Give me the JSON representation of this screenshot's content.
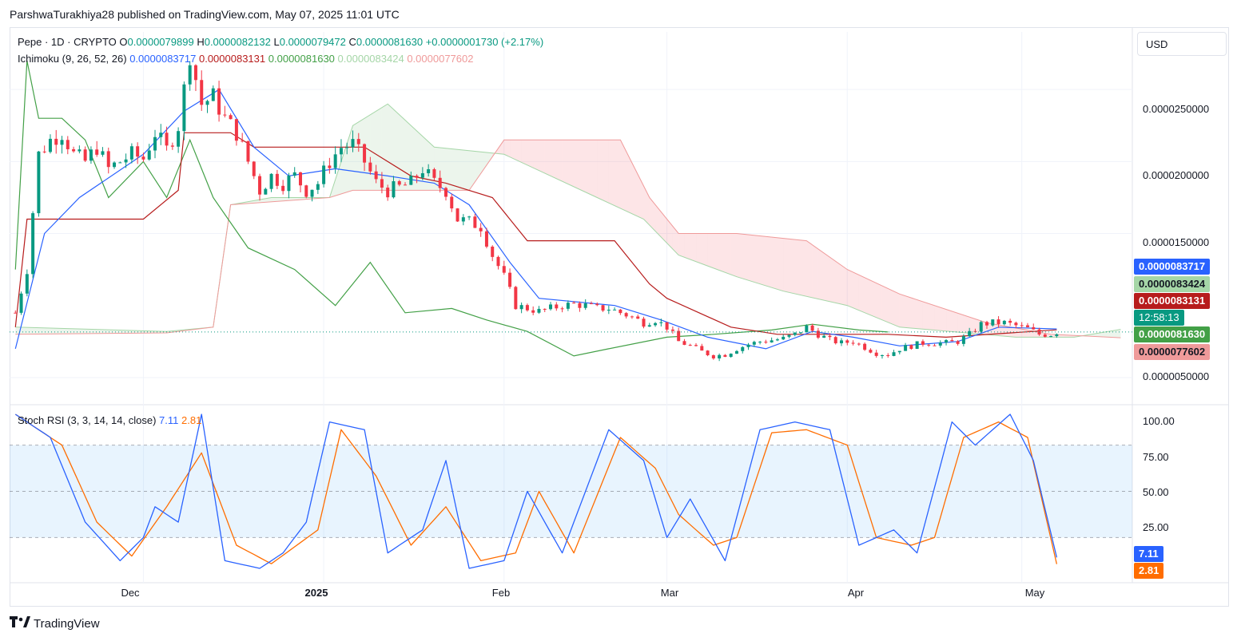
{
  "header": {
    "published_by": "ParshwaTurakhiya28 published on TradingView.com, May 07, 2025 11:01 UTC"
  },
  "legend": {
    "symbol": "Pepe · 1D · CRYPTO",
    "o_label": "O",
    "o": "0.0000079899",
    "h_label": "H",
    "h": "0.0000082132",
    "l_label": "L",
    "l": "0.0000079472",
    "c_label": "C",
    "c": "0.0000081630",
    "change": "+0.0000001730 (+2.17%)",
    "ichimoku_label": "Ichimoku (9, 26, 52, 26)",
    "ichi_conversion": "0.0000083717",
    "ichi_base": "0.0000083131",
    "ichi_lagging": "0.0000081630",
    "ichi_span_a": "0.0000083424",
    "ichi_span_b": "0.0000077602",
    "stoch_label": "Stoch RSI (3, 3, 14, 14, close)",
    "stoch_k": "7.11",
    "stoch_d": "2.81"
  },
  "currency": "USD",
  "price_axis": [
    "0.0000250000",
    "0.0000200000",
    "0.0000150000",
    "0.0000050000"
  ],
  "rsi_axis": [
    "100.00",
    "75.00",
    "50.00",
    "25.00"
  ],
  "badges": {
    "conversion": "0.0000083717",
    "span_a": "0.0000083424",
    "base": "0.0000083131",
    "countdown": "12:58:13",
    "last_price": "0.0000081630",
    "span_b": "0.0000077602",
    "k": "7.11",
    "d": "2.81"
  },
  "x_axis": [
    "Dec",
    "2025",
    "Feb",
    "Mar",
    "Apr",
    "May"
  ],
  "brand": "TradingView",
  "colors": {
    "up": "#089981",
    "down": "#f23645",
    "conversion": "#2962ff",
    "base": "#b71c1c",
    "lagging": "#43a047",
    "span_a": "#a5d6a7",
    "span_b": "#ef9a9a",
    "k": "#2962ff",
    "d": "#ff6d00"
  },
  "chart_data": [
    {
      "type": "candlestick",
      "title": "Pepe · 1D · CRYPTO",
      "ylim": [
        3.5e-06,
        2.9e-05
      ],
      "x_range": [
        "2024-11-08",
        "2025-05-20"
      ],
      "price_path": [
        [
          "2024-11-09",
          9.5e-06
        ],
        [
          "2024-11-11",
          1.25e-05
        ],
        [
          "2024-11-13",
          2.05e-05
        ],
        [
          "2024-11-15",
          2.15e-05
        ],
        [
          "2024-11-17",
          2.2e-05
        ],
        [
          "2024-11-19",
          2.05e-05
        ],
        [
          "2024-11-21",
          2e-05
        ],
        [
          "2024-11-23",
          2.1e-05
        ],
        [
          "2024-11-25",
          1.95e-05
        ],
        [
          "2024-11-27",
          2e-05
        ],
        [
          "2024-11-29",
          2.05e-05
        ],
        [
          "2024-12-01",
          2.02e-05
        ],
        [
          "2024-12-03",
          2.2e-05
        ],
        [
          "2024-12-05",
          2.08e-05
        ],
        [
          "2024-12-07",
          2.25e-05
        ],
        [
          "2024-12-09",
          2.75e-05
        ],
        [
          "2024-12-11",
          2.4e-05
        ],
        [
          "2024-12-13",
          2.45e-05
        ],
        [
          "2024-12-15",
          2.3e-05
        ],
        [
          "2024-12-17",
          2.2e-05
        ],
        [
          "2024-12-19",
          2e-05
        ],
        [
          "2024-12-21",
          1.8e-05
        ],
        [
          "2024-12-23",
          1.9e-05
        ],
        [
          "2024-12-25",
          1.85e-05
        ],
        [
          "2024-12-27",
          1.9e-05
        ],
        [
          "2024-12-29",
          1.8e-05
        ],
        [
          "2024-12-31",
          1.85e-05
        ],
        [
          "2025-01-02",
          2e-05
        ],
        [
          "2025-01-04",
          2.1e-05
        ],
        [
          "2025-01-06",
          2.12e-05
        ],
        [
          "2025-01-08",
          2e-05
        ],
        [
          "2025-01-10",
          1.85e-05
        ],
        [
          "2025-01-12",
          1.8e-05
        ],
        [
          "2025-01-14",
          1.82e-05
        ],
        [
          "2025-01-16",
          1.85e-05
        ],
        [
          "2025-01-18",
          1.95e-05
        ],
        [
          "2025-01-20",
          1.85e-05
        ],
        [
          "2025-01-22",
          1.8e-05
        ],
        [
          "2025-01-24",
          1.6e-05
        ],
        [
          "2025-01-26",
          1.58e-05
        ],
        [
          "2025-01-28",
          1.55e-05
        ],
        [
          "2025-01-30",
          1.35e-05
        ],
        [
          "2025-02-01",
          1.2e-05
        ],
        [
          "2025-02-03",
          1e-05
        ],
        [
          "2025-02-05",
          9.8e-06
        ],
        [
          "2025-02-07",
          9.6e-06
        ],
        [
          "2025-02-09",
          9.8e-06
        ],
        [
          "2025-02-11",
          1e-05
        ],
        [
          "2025-02-13",
          1.01e-05
        ],
        [
          "2025-02-15",
          1e-05
        ],
        [
          "2025-02-17",
          9.8e-06
        ],
        [
          "2025-02-19",
          9.8e-06
        ],
        [
          "2025-02-21",
          9.5e-06
        ],
        [
          "2025-02-23",
          9.2e-06
        ],
        [
          "2025-02-25",
          8.8e-06
        ],
        [
          "2025-02-27",
          9e-06
        ],
        [
          "2025-03-01",
          8.5e-06
        ],
        [
          "2025-03-03",
          7.5e-06
        ],
        [
          "2025-03-05",
          7.2e-06
        ],
        [
          "2025-03-07",
          6.8e-06
        ],
        [
          "2025-03-09",
          6.5e-06
        ],
        [
          "2025-03-11",
          6.6e-06
        ],
        [
          "2025-03-13",
          7e-06
        ],
        [
          "2025-03-15",
          7.3e-06
        ],
        [
          "2025-03-17",
          7.5e-06
        ],
        [
          "2025-03-19",
          7.6e-06
        ],
        [
          "2025-03-21",
          7.7e-06
        ],
        [
          "2025-03-23",
          8e-06
        ],
        [
          "2025-03-25",
          8.5e-06
        ],
        [
          "2025-03-27",
          8e-06
        ],
        [
          "2025-03-29",
          7.6e-06
        ],
        [
          "2025-03-31",
          7.4e-06
        ],
        [
          "2025-04-02",
          7.5e-06
        ],
        [
          "2025-04-04",
          7.1e-06
        ],
        [
          "2025-04-06",
          6.7e-06
        ],
        [
          "2025-04-08",
          6.6e-06
        ],
        [
          "2025-04-10",
          7e-06
        ],
        [
          "2025-04-12",
          7.2e-06
        ],
        [
          "2025-04-14",
          7.4e-06
        ],
        [
          "2025-04-16",
          7.4e-06
        ],
        [
          "2025-04-18",
          7.4e-06
        ],
        [
          "2025-04-20",
          7.5e-06
        ],
        [
          "2025-04-22",
          8e-06
        ],
        [
          "2025-04-24",
          8.7e-06
        ],
        [
          "2025-04-26",
          8.8e-06
        ],
        [
          "2025-04-28",
          8.8e-06
        ],
        [
          "2025-04-30",
          8.6e-06
        ],
        [
          "2025-05-02",
          8.4e-06
        ],
        [
          "2025-05-04",
          8e-06
        ],
        [
          "2025-05-06",
          8e-06
        ],
        [
          "2025-05-07",
          8.163e-06
        ]
      ],
      "tenkan_path": [
        [
          "2024-11-09",
          7e-06
        ],
        [
          "2024-11-14",
          1.5e-05
        ],
        [
          "2024-11-20",
          1.75e-05
        ],
        [
          "2024-12-01",
          2.05e-05
        ],
        [
          "2024-12-08",
          2.35e-05
        ],
        [
          "2024-12-14",
          2.5e-05
        ],
        [
          "2024-12-20",
          2.1e-05
        ],
        [
          "2024-12-26",
          1.9e-05
        ],
        [
          "2025-01-03",
          1.95e-05
        ],
        [
          "2025-01-12",
          1.9e-05
        ],
        [
          "2025-01-20",
          1.85e-05
        ],
        [
          "2025-01-26",
          1.7e-05
        ],
        [
          "2025-02-02",
          1.3e-05
        ],
        [
          "2025-02-07",
          1.05e-05
        ],
        [
          "2025-02-20",
          1e-05
        ],
        [
          "2025-02-28",
          9e-06
        ],
        [
          "2025-03-08",
          7.8e-06
        ],
        [
          "2025-03-18",
          7e-06
        ],
        [
          "2025-03-26",
          8.2e-06
        ],
        [
          "2025-04-02",
          7.8e-06
        ],
        [
          "2025-04-10",
          7.2e-06
        ],
        [
          "2025-04-20",
          7.5e-06
        ],
        [
          "2025-04-27",
          8.5e-06
        ],
        [
          "2025-05-07",
          8.3717e-06
        ]
      ],
      "kijun_path": [
        [
          "2024-11-09",
          8.5e-06
        ],
        [
          "2024-11-11",
          1.6e-05
        ],
        [
          "2024-12-01",
          1.6e-05
        ],
        [
          "2024-12-07",
          1.8e-05
        ],
        [
          "2024-12-08",
          2.2e-05
        ],
        [
          "2024-12-16",
          2.2e-05
        ],
        [
          "2024-12-20",
          2.1e-05
        ],
        [
          "2025-01-08",
          2.1e-05
        ],
        [
          "2025-01-16",
          1.9e-05
        ],
        [
          "2025-01-22",
          1.85e-05
        ],
        [
          "2025-01-30",
          1.75e-05
        ],
        [
          "2025-02-05",
          1.45e-05
        ],
        [
          "2025-02-20",
          1.45e-05
        ],
        [
          "2025-02-26",
          1.15e-05
        ],
        [
          "2025-03-01",
          1.05e-05
        ],
        [
          "2025-03-12",
          8.5e-06
        ],
        [
          "2025-03-20",
          8e-06
        ],
        [
          "2025-04-08",
          8e-06
        ],
        [
          "2025-04-18",
          7.8e-06
        ],
        [
          "2025-05-07",
          8.3131e-06
        ]
      ],
      "lagging_span_path": [
        [
          "2024-11-09",
          1.25e-05
        ],
        [
          "2024-11-11",
          2.7e-05
        ],
        [
          "2024-11-13",
          2.3e-05
        ],
        [
          "2024-11-17",
          2.3e-05
        ],
        [
          "2024-11-21",
          2.15e-05
        ],
        [
          "2024-11-25",
          1.75e-05
        ],
        [
          "2024-12-01",
          2e-05
        ],
        [
          "2024-12-05",
          1.75e-05
        ],
        [
          "2024-12-09",
          2.15e-05
        ],
        [
          "2024-12-13",
          1.75e-05
        ],
        [
          "2024-12-19",
          1.4e-05
        ],
        [
          "2024-12-27",
          1.25e-05
        ],
        [
          "2025-01-03",
          1e-05
        ],
        [
          "2025-01-09",
          1.3e-05
        ],
        [
          "2025-01-15",
          9.5e-06
        ],
        [
          "2025-01-23",
          9.8e-06
        ],
        [
          "2025-01-29",
          9e-06
        ],
        [
          "2025-02-05",
          8.2e-06
        ],
        [
          "2025-02-13",
          6.5e-06
        ],
        [
          "2025-02-19",
          7e-06
        ],
        [
          "2025-03-01",
          7.8e-06
        ],
        [
          "2025-03-09",
          8e-06
        ],
        [
          "2025-03-19",
          8.3e-06
        ],
        [
          "2025-03-26",
          8.7e-06
        ],
        [
          "2025-04-03",
          8.3e-06
        ],
        [
          "2025-04-08",
          8.163e-06
        ]
      ],
      "span_a_path": [
        [
          "2024-11-09",
          8.5e-06
        ],
        [
          "2024-12-05",
          8.2e-06
        ],
        [
          "2024-12-13",
          8.5e-06
        ],
        [
          "2024-12-16",
          1.7e-05
        ],
        [
          "2024-12-23",
          1.75e-05
        ],
        [
          "2025-01-02",
          1.75e-05
        ],
        [
          "2025-01-06",
          2.25e-05
        ],
        [
          "2025-01-12",
          2.4e-05
        ],
        [
          "2025-01-20",
          2.1e-05
        ],
        [
          "2025-02-01",
          2.05e-05
        ],
        [
          "2025-02-17",
          1.75e-05
        ],
        [
          "2025-02-25",
          1.6e-05
        ],
        [
          "2025-03-03",
          1.35e-05
        ],
        [
          "2025-03-13",
          1.2e-05
        ],
        [
          "2025-03-21",
          1.1e-05
        ],
        [
          "2025-04-01",
          1e-05
        ],
        [
          "2025-04-10",
          8.5e-06
        ],
        [
          "2025-04-30",
          7.8e-06
        ],
        [
          "2025-05-10",
          7.8e-06
        ],
        [
          "2025-05-18",
          8.3424e-06
        ]
      ],
      "span_b_path": [
        [
          "2024-11-09",
          8e-06
        ],
        [
          "2024-12-05",
          8.1e-06
        ],
        [
          "2024-12-13",
          8.5e-06
        ],
        [
          "2024-12-16",
          1.7e-05
        ],
        [
          "2025-01-02",
          1.75e-05
        ],
        [
          "2025-01-06",
          1.8e-05
        ],
        [
          "2025-01-26",
          1.8e-05
        ],
        [
          "2025-02-01",
          2.15e-05
        ],
        [
          "2025-02-21",
          2.15e-05
        ],
        [
          "2025-02-26",
          1.75e-05
        ],
        [
          "2025-03-03",
          1.5e-05
        ],
        [
          "2025-03-13",
          1.5e-05
        ],
        [
          "2025-03-25",
          1.45e-05
        ],
        [
          "2025-04-01",
          1.25e-05
        ],
        [
          "2025-04-10",
          1.08e-05
        ],
        [
          "2025-04-25",
          8.8e-06
        ],
        [
          "2025-05-06",
          8e-06
        ],
        [
          "2025-05-18",
          7.7602e-06
        ]
      ]
    },
    {
      "type": "line",
      "title": "Stoch RSI (3, 3, 14, 14, close)",
      "ylim": [
        0,
        100
      ],
      "bands": [
        20,
        50,
        80
      ],
      "series": [
        {
          "name": "K",
          "points": [
            [
              "2024-11-09",
              100
            ],
            [
              "2024-11-15",
              85
            ],
            [
              "2024-11-21",
              30
            ],
            [
              "2024-11-27",
              5
            ],
            [
              "2024-12-01",
              20
            ],
            [
              "2024-12-03",
              40
            ],
            [
              "2024-12-07",
              30
            ],
            [
              "2024-12-11",
              100
            ],
            [
              "2024-12-15",
              5
            ],
            [
              "2024-12-21",
              0
            ],
            [
              "2024-12-25",
              10
            ],
            [
              "2024-12-29",
              30
            ],
            [
              "2025-01-02",
              95
            ],
            [
              "2025-01-08",
              90
            ],
            [
              "2025-01-12",
              10
            ],
            [
              "2025-01-18",
              25
            ],
            [
              "2025-01-22",
              70
            ],
            [
              "2025-01-26",
              0
            ],
            [
              "2025-02-01",
              5
            ],
            [
              "2025-02-05",
              50
            ],
            [
              "2025-02-11",
              10
            ],
            [
              "2025-02-19",
              90
            ],
            [
              "2025-02-25",
              70
            ],
            [
              "2025-03-01",
              20
            ],
            [
              "2025-03-05",
              45
            ],
            [
              "2025-03-11",
              5
            ],
            [
              "2025-03-17",
              90
            ],
            [
              "2025-03-23",
              95
            ],
            [
              "2025-03-29",
              90
            ],
            [
              "2025-04-03",
              15
            ],
            [
              "2025-04-09",
              25
            ],
            [
              "2025-04-13",
              10
            ],
            [
              "2025-04-19",
              95
            ],
            [
              "2025-04-23",
              80
            ],
            [
              "2025-04-29",
              100
            ],
            [
              "2025-05-03",
              70
            ],
            [
              "2025-05-07",
              7.11
            ]
          ]
        },
        {
          "name": "D",
          "points": [
            [
              "2024-11-09",
              100
            ],
            [
              "2024-11-17",
              80
            ],
            [
              "2024-11-23",
              30
            ],
            [
              "2024-11-29",
              8
            ],
            [
              "2024-12-05",
              40
            ],
            [
              "2024-12-11",
              75
            ],
            [
              "2024-12-17",
              15
            ],
            [
              "2024-12-23",
              3
            ],
            [
              "2024-12-31",
              25
            ],
            [
              "2025-01-04",
              90
            ],
            [
              "2025-01-10",
              60
            ],
            [
              "2025-01-16",
              15
            ],
            [
              "2025-01-22",
              40
            ],
            [
              "2025-01-28",
              5
            ],
            [
              "2025-02-03",
              10
            ],
            [
              "2025-02-07",
              50
            ],
            [
              "2025-02-13",
              10
            ],
            [
              "2025-02-21",
              85
            ],
            [
              "2025-02-27",
              65
            ],
            [
              "2025-03-03",
              35
            ],
            [
              "2025-03-09",
              15
            ],
            [
              "2025-03-13",
              20
            ],
            [
              "2025-03-19",
              88
            ],
            [
              "2025-03-25",
              90
            ],
            [
              "2025-04-01",
              80
            ],
            [
              "2025-04-06",
              20
            ],
            [
              "2025-04-12",
              15
            ],
            [
              "2025-04-16",
              20
            ],
            [
              "2025-04-21",
              85
            ],
            [
              "2025-04-27",
              95
            ],
            [
              "2025-05-02",
              85
            ],
            [
              "2025-05-07",
              2.81
            ]
          ]
        }
      ]
    }
  ]
}
